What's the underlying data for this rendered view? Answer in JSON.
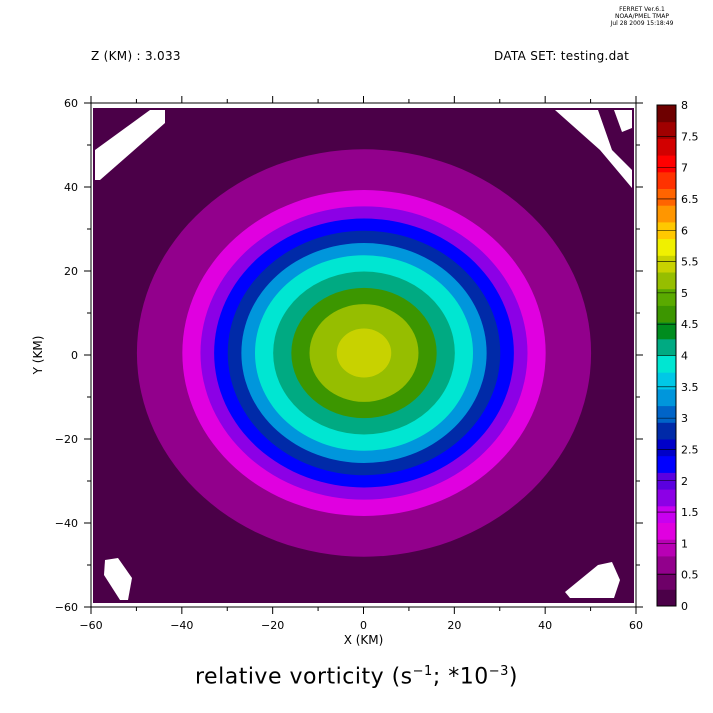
{
  "header": {
    "z_label": "Z (KM) : 3.033",
    "dataset_label": "DATA SET: testing.dat",
    "meta_lines": [
      "FERRET  Ver.6.1",
      "NOAA/PMEL TMAP",
      "Jul 28 2009 15:18:49"
    ]
  },
  "caption": {
    "prefix": "relative vorticity (s",
    "exp1": "−1",
    "middle": "; *10",
    "exp2": "−3",
    "suffix": ")"
  },
  "chart_data": {
    "type": "heatmap",
    "xlabel": "X (KM)",
    "ylabel": "Y (KM)",
    "xlim": [
      -60,
      60
    ],
    "ylim": [
      -60,
      60
    ],
    "x_ticks": [
      -60,
      -40,
      -20,
      0,
      20,
      40,
      60
    ],
    "y_ticks": [
      -60,
      -40,
      -20,
      0,
      20,
      40,
      60
    ],
    "colorbar": {
      "levels": [
        0,
        0.5,
        1,
        1.5,
        2,
        2.5,
        3,
        3.5,
        4,
        4.5,
        5,
        5.5,
        6,
        6.5,
        7,
        7.5,
        8
      ],
      "tick_labels": [
        "0",
        "0.5",
        "1",
        "1.5",
        "2",
        "2.5",
        "3",
        "3.5",
        "4",
        "4.5",
        "5",
        "5.5",
        "6",
        "6.5",
        "7",
        "7.5",
        "8"
      ],
      "colors": [
        "#4b0048",
        "#6e0068",
        "#92008c",
        "#b800b4",
        "#e000e0",
        "#c800f0",
        "#8c00e6",
        "#5a00e0",
        "#0000ff",
        "#0000c8",
        "#002aa8",
        "#0064c8",
        "#0096dc",
        "#00c8e6",
        "#00e6d2",
        "#00aa82",
        "#008c1e",
        "#3c9600",
        "#5aaa00",
        "#96be00",
        "#c8d200",
        "#f0f000",
        "#ffc800",
        "#ff9600",
        "#ff6400",
        "#ff3200",
        "#ff0000",
        "#d20000",
        "#a00000",
        "#6e0000"
      ]
    },
    "field": {
      "description_free": true,
      "center": [
        0,
        0
      ],
      "peak_value": 5.5,
      "background_value": 0.25,
      "approx_contours_radius_km": [
        {
          "level": 0.5,
          "radius": 50
        },
        {
          "level": 1.0,
          "radius": 40
        },
        {
          "level": 1.5,
          "radius": 36
        },
        {
          "level": 2.0,
          "radius": 33
        },
        {
          "level": 2.5,
          "radius": 30
        },
        {
          "level": 3.0,
          "radius": 27
        },
        {
          "level": 3.5,
          "radius": 24
        },
        {
          "level": 4.0,
          "radius": 20
        },
        {
          "level": 4.5,
          "radius": 16
        },
        {
          "level": 5.0,
          "radius": 12
        },
        {
          "level": 5.5,
          "radius": 6
        }
      ]
    }
  }
}
